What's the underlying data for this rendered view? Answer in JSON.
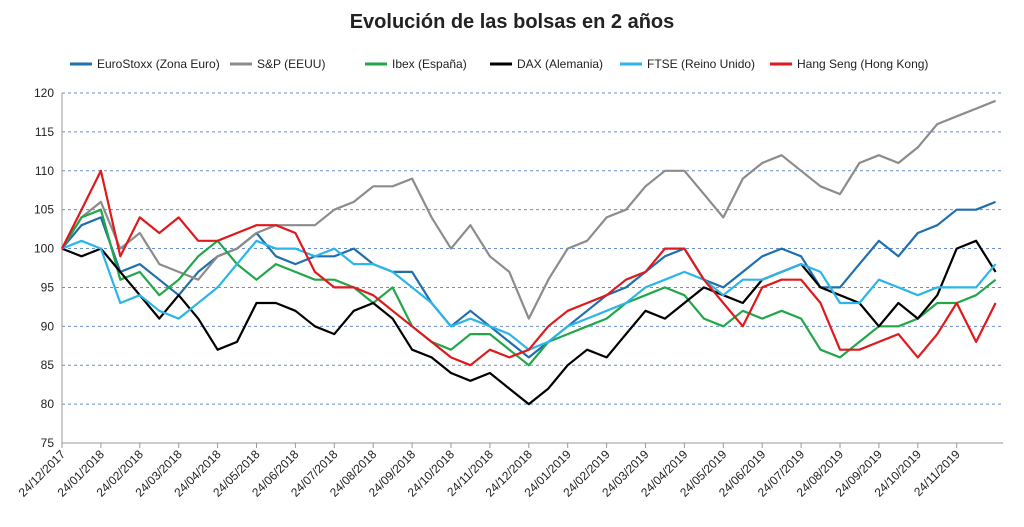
{
  "chart_data": {
    "type": "line",
    "title": "Evolución de las bolsas en 2 años",
    "categories": [
      "24/12/2017",
      null,
      "24/01/2018",
      null,
      "24/02/2018",
      null,
      "24/03/2018",
      null,
      "24/04/2018",
      null,
      "24/05/2018",
      null,
      "24/06/2018",
      null,
      "24/07/2018",
      null,
      "24/08/2018",
      null,
      "24/09/2018",
      null,
      "24/10/2018",
      null,
      "24/11/2018",
      null,
      "24/12/2018",
      null,
      "24/01/2019",
      null,
      "24/02/2019",
      null,
      "24/03/2019",
      null,
      "24/04/2019",
      null,
      "24/05/2019",
      null,
      "24/06/2019",
      null,
      "24/07/2019",
      null,
      "24/08/2019",
      null,
      "24/09/2019",
      null,
      "24/10/2019",
      null,
      "24/11/2019",
      null,
      null
    ],
    "series": [
      {
        "name": "EuroStoxx (Zona Euro)",
        "color": "#1f6fad",
        "values": [
          100,
          103,
          104,
          97,
          98,
          96,
          94,
          97,
          99,
          100,
          102,
          99,
          98,
          99,
          99,
          100,
          98,
          97,
          97,
          93,
          90,
          92,
          90,
          88,
          86,
          88,
          90,
          92,
          94,
          95,
          97,
          99,
          100,
          96,
          95,
          97,
          99,
          100,
          99,
          95,
          95,
          98,
          101,
          99,
          102,
          103,
          105,
          105,
          106
        ]
      },
      {
        "name": "S&P (EEUU)",
        "color": "#8c8c8c",
        "values": [
          100,
          104,
          106,
          100,
          102,
          98,
          97,
          96,
          99,
          100,
          102,
          103,
          103,
          103,
          105,
          106,
          108,
          108,
          109,
          104,
          100,
          103,
          99,
          97,
          91,
          96,
          100,
          101,
          104,
          105,
          108,
          110,
          110,
          107,
          104,
          109,
          111,
          112,
          110,
          108,
          107,
          111,
          112,
          111,
          113,
          116,
          117,
          118,
          119
        ]
      },
      {
        "name": "Ibex (España)",
        "color": "#22a64a",
        "values": [
          100,
          104,
          105,
          96,
          97,
          94,
          96,
          99,
          101,
          98,
          96,
          98,
          97,
          96,
          96,
          95,
          93,
          95,
          90,
          88,
          87,
          89,
          89,
          87,
          85,
          88,
          89,
          90,
          91,
          93,
          94,
          95,
          94,
          91,
          90,
          92,
          91,
          92,
          91,
          87,
          86,
          88,
          90,
          90,
          91,
          93,
          93,
          94,
          96
        ]
      },
      {
        "name": "DAX (Alemania)",
        "color": "#000000",
        "values": [
          100,
          99,
          100,
          97,
          94,
          91,
          94,
          91,
          87,
          88,
          93,
          93,
          92,
          90,
          89,
          92,
          93,
          91,
          87,
          86,
          84,
          83,
          84,
          82,
          80,
          82,
          85,
          87,
          86,
          89,
          92,
          91,
          93,
          95,
          94,
          93,
          96,
          97,
          98,
          95,
          94,
          93,
          90,
          93,
          91,
          94,
          100,
          101,
          97
        ]
      },
      {
        "name": "FTSE (Reino Unido)",
        "color": "#2cb5e8",
        "values": [
          100,
          101,
          100,
          93,
          94,
          92,
          91,
          93,
          95,
          98,
          101,
          100,
          100,
          99,
          100,
          98,
          98,
          97,
          95,
          93,
          90,
          91,
          90,
          89,
          87,
          88,
          90,
          91,
          92,
          93,
          95,
          96,
          97,
          96,
          94,
          96,
          96,
          97,
          98,
          97,
          93,
          93,
          96,
          95,
          94,
          95,
          95,
          95,
          98
        ]
      },
      {
        "name": "Hang Seng (Hong Kong)",
        "color": "#e0191c",
        "values": [
          100,
          105,
          110,
          99,
          104,
          102,
          104,
          101,
          101,
          102,
          103,
          103,
          102,
          97,
          95,
          95,
          94,
          92,
          90,
          88,
          86,
          85,
          87,
          86,
          87,
          90,
          92,
          93,
          94,
          96,
          97,
          100,
          100,
          96,
          93,
          90,
          95,
          96,
          96,
          93,
          87,
          87,
          88,
          89,
          86,
          89,
          93,
          88,
          93
        ]
      }
    ],
    "ylim": [
      75,
      120
    ],
    "yticks": [
      75,
      80,
      85,
      90,
      95,
      100,
      105,
      110,
      115,
      120
    ],
    "grid": true,
    "legend": "top"
  }
}
